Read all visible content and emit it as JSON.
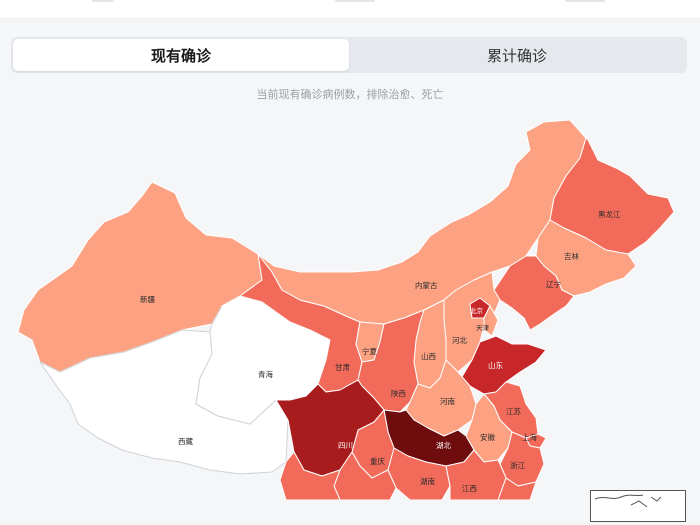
{
  "tabs": [
    {
      "label": "现有确诊",
      "active": true
    },
    {
      "label": "累计确诊",
      "active": false
    }
  ],
  "subtitle": "当前现有确诊病例数，排除治愈、死亡",
  "colors": {
    "level_0": "#ffffff",
    "level_1": "#fca282",
    "level_2": "#f26b5a",
    "level_3": "#c82729",
    "level_4": "#a81c1e",
    "level_5": "#6e0c0e"
  },
  "provinces": [
    {
      "key": "xinjiang",
      "label": "新疆",
      "level": 1
    },
    {
      "key": "xizang",
      "label": "西藏",
      "level": 0
    },
    {
      "key": "qinghai",
      "label": "青海",
      "level": 0
    },
    {
      "key": "gansu",
      "label": "甘肃",
      "level": 2
    },
    {
      "key": "neimenggu",
      "label": "内蒙古",
      "level": 1
    },
    {
      "key": "heilongjiang",
      "label": "黑龙江",
      "level": 2
    },
    {
      "key": "jilin",
      "label": "吉林",
      "level": 1
    },
    {
      "key": "liaoning",
      "label": "辽宁",
      "level": 2
    },
    {
      "key": "beijing",
      "label": "北京",
      "level": 3
    },
    {
      "key": "tianjin",
      "label": "天津",
      "level": 1
    },
    {
      "key": "hebei",
      "label": "河北",
      "level": 1
    },
    {
      "key": "shanxi",
      "label": "山西",
      "level": 1
    },
    {
      "key": "shandong",
      "label": "山东",
      "level": 3
    },
    {
      "key": "ningxia",
      "label": "宁夏",
      "level": 1
    },
    {
      "key": "shaanxi",
      "label": "陕西",
      "level": 2
    },
    {
      "key": "henan",
      "label": "河南",
      "level": 1
    },
    {
      "key": "jiangsu",
      "label": "江苏",
      "level": 2
    },
    {
      "key": "anhui",
      "label": "安徽",
      "level": 1
    },
    {
      "key": "shanghai",
      "label": "上海",
      "level": 2
    },
    {
      "key": "hubei",
      "label": "湖北",
      "level": 5
    },
    {
      "key": "sichuan",
      "label": "四川",
      "level": 4
    },
    {
      "key": "chongqing",
      "label": "重庆",
      "level": 2
    },
    {
      "key": "zhejiang",
      "label": "浙江",
      "level": 2
    },
    {
      "key": "hunan",
      "label": "湖南",
      "level": 2
    },
    {
      "key": "jiangxi",
      "label": "江西",
      "level": 2
    },
    {
      "key": "guizhou",
      "label": "",
      "level": 2
    },
    {
      "key": "yunnan",
      "label": "",
      "level": 2
    },
    {
      "key": "fujian",
      "label": "",
      "level": 2
    }
  ]
}
